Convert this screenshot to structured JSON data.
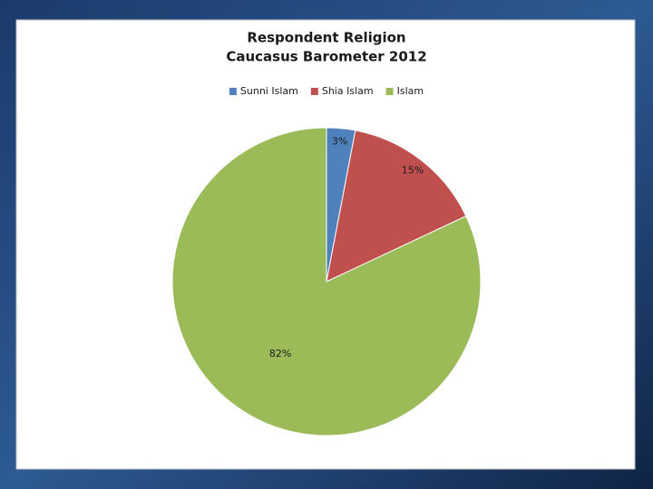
{
  "chart_data": {
    "type": "pie",
    "title": "Respondent Religion",
    "subtitle": "Caucasus Barometer 2012",
    "categories": [
      "Sunni Islam",
      "Shia Islam",
      "Islam"
    ],
    "values": [
      3,
      15,
      82
    ],
    "value_labels": [
      "3%",
      "15%",
      "82%"
    ],
    "colors": [
      "#4f81bd",
      "#c0504d",
      "#9bbb59"
    ],
    "legend": "top"
  }
}
